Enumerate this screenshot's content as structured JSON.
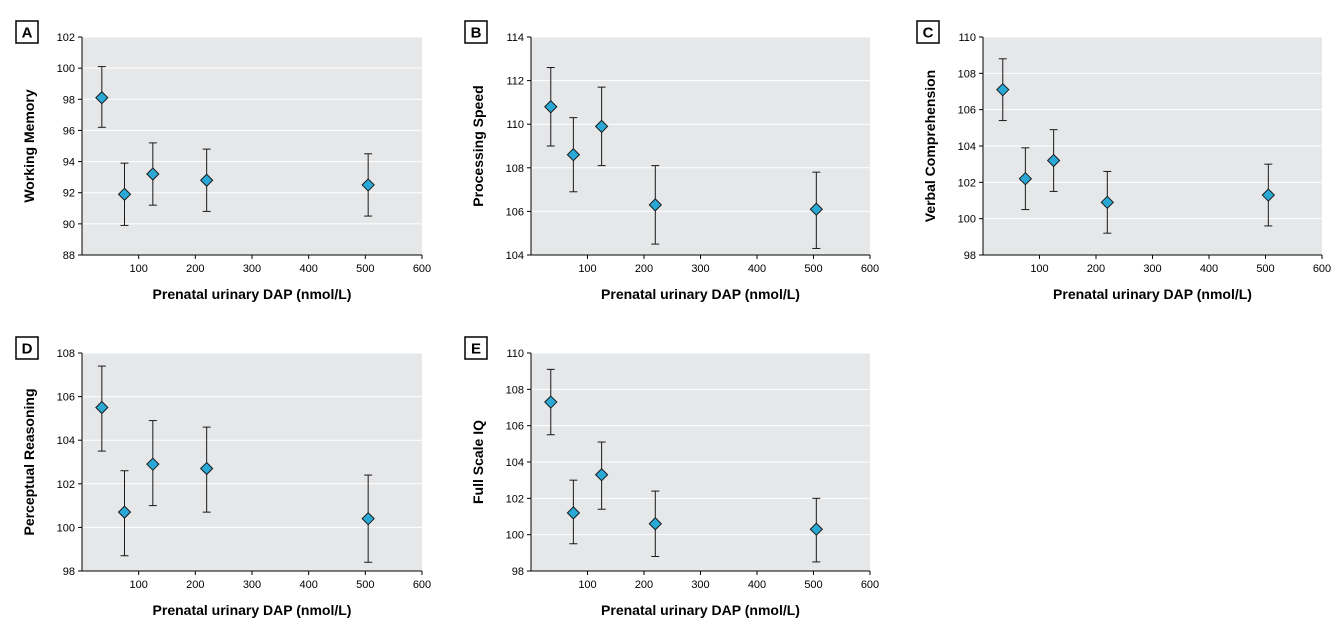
{
  "colors": {
    "plot_bg": "#e6e7e8",
    "grid": "#ffffff",
    "marker_fill": "#2aa9d6",
    "marker_stroke": "#1a1a1a",
    "errorbar": "#1a1a1a"
  },
  "chart_data": [
    {
      "type": "scatter",
      "panel": "A",
      "xlabel": "Prenatal urinary DAP (nmol/L)",
      "ylabel": "Working Memory",
      "xlim": [
        0,
        600
      ],
      "ylim": [
        88,
        102
      ],
      "xticks": [
        100,
        200,
        300,
        400,
        500,
        600
      ],
      "yticks": [
        88,
        90,
        92,
        94,
        96,
        98,
        100,
        102
      ],
      "x": [
        35,
        75,
        125,
        220,
        505
      ],
      "y": [
        98.1,
        91.9,
        93.2,
        92.8,
        92.5
      ],
      "err_low": [
        96.2,
        89.9,
        91.2,
        90.8,
        90.5
      ],
      "err_high": [
        100.1,
        93.9,
        95.2,
        94.8,
        94.5
      ]
    },
    {
      "type": "scatter",
      "panel": "B",
      "xlabel": "Prenatal urinary DAP (nmol/L)",
      "ylabel": "Processing Speed",
      "xlim": [
        0,
        600
      ],
      "ylim": [
        104,
        114
      ],
      "xticks": [
        100,
        200,
        300,
        400,
        500,
        600
      ],
      "yticks": [
        104,
        106,
        108,
        110,
        112,
        114
      ],
      "x": [
        35,
        75,
        125,
        220,
        505
      ],
      "y": [
        110.8,
        108.6,
        109.9,
        106.3,
        106.1
      ],
      "err_low": [
        109.0,
        106.9,
        108.1,
        104.5,
        104.3
      ],
      "err_high": [
        112.6,
        110.3,
        111.7,
        108.1,
        107.8
      ]
    },
    {
      "type": "scatter",
      "panel": "C",
      "xlabel": "Prenatal urinary DAP (nmol/L)",
      "ylabel": "Verbal Comprehension",
      "xlim": [
        0,
        600
      ],
      "ylim": [
        98,
        110
      ],
      "xticks": [
        100,
        200,
        300,
        400,
        500,
        600
      ],
      "yticks": [
        98,
        100,
        102,
        104,
        106,
        108,
        110
      ],
      "x": [
        35,
        75,
        125,
        220,
        505
      ],
      "y": [
        107.1,
        102.2,
        103.2,
        100.9,
        101.3
      ],
      "err_low": [
        105.4,
        100.5,
        101.5,
        99.2,
        99.6
      ],
      "err_high": [
        108.8,
        103.9,
        104.9,
        102.6,
        103.0
      ]
    },
    {
      "type": "scatter",
      "panel": "D",
      "xlabel": "Prenatal urinary DAP (nmol/L)",
      "ylabel": "Perceptual Reasoning",
      "xlim": [
        0,
        600
      ],
      "ylim": [
        98,
        108
      ],
      "xticks": [
        100,
        200,
        300,
        400,
        500,
        600
      ],
      "yticks": [
        98,
        100,
        102,
        104,
        106,
        108
      ],
      "x": [
        35,
        75,
        125,
        220,
        505
      ],
      "y": [
        105.5,
        100.7,
        102.9,
        102.7,
        100.4
      ],
      "err_low": [
        103.5,
        98.7,
        101.0,
        100.7,
        98.4
      ],
      "err_high": [
        107.4,
        102.6,
        104.9,
        104.6,
        102.4
      ]
    },
    {
      "type": "scatter",
      "panel": "E",
      "xlabel": "Prenatal urinary DAP (nmol/L)",
      "ylabel": "Full Scale IQ",
      "xlim": [
        0,
        600
      ],
      "ylim": [
        98,
        110
      ],
      "xticks": [
        100,
        200,
        300,
        400,
        500,
        600
      ],
      "yticks": [
        98,
        100,
        102,
        104,
        106,
        108,
        110
      ],
      "x": [
        35,
        75,
        125,
        220,
        505
      ],
      "y": [
        107.3,
        101.2,
        103.3,
        100.6,
        100.3
      ],
      "err_low": [
        105.5,
        99.5,
        101.4,
        98.8,
        98.5
      ],
      "err_high": [
        109.1,
        103.0,
        105.1,
        102.4,
        102.0
      ]
    }
  ]
}
